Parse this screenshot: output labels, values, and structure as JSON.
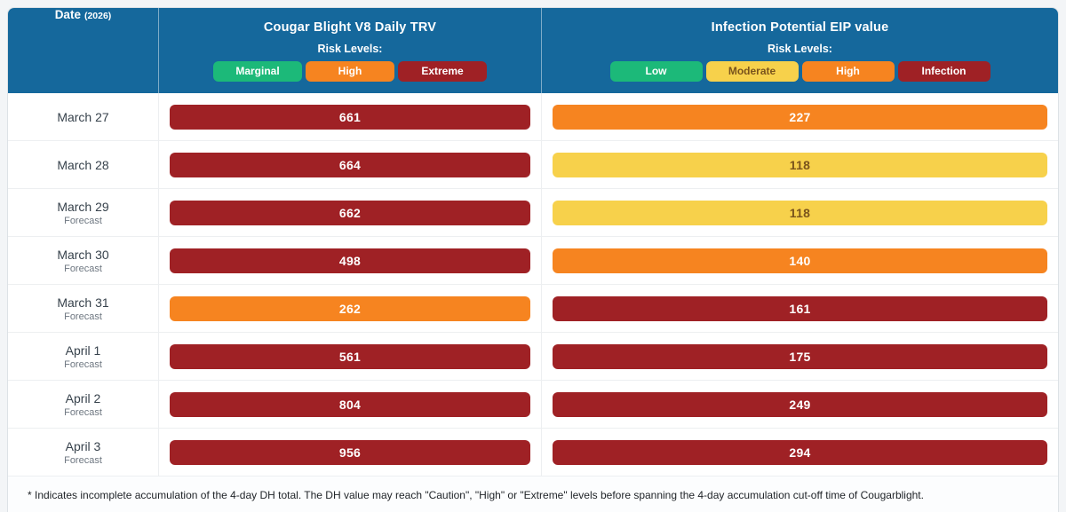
{
  "colors": {
    "header_bg": "#15689c",
    "extreme_red": "#9f2125",
    "high_orange": "#f68420",
    "moderate_yellow": "#f7d14b",
    "low_green": "#1cb979",
    "yellow_text": "#7a541c",
    "white_text": "#ffffff"
  },
  "table": {
    "date_header": {
      "label": "Date",
      "year": "(2026)"
    },
    "columns": [
      {
        "title": "Cougar Blight V8 Daily TRV",
        "risk_levels_label": "Risk Levels:",
        "badges": [
          {
            "label": "Marginal",
            "bg": "#1cb979",
            "fg": "#ffffff"
          },
          {
            "label": "High",
            "bg": "#f68420",
            "fg": "#ffffff"
          },
          {
            "label": "Extreme",
            "bg": "#9f2125",
            "fg": "#ffffff"
          }
        ]
      },
      {
        "title": "Infection Potential EIP value",
        "risk_levels_label": "Risk Levels:",
        "badges": [
          {
            "label": "Low",
            "bg": "#1cb979",
            "fg": "#ffffff"
          },
          {
            "label": "Moderate",
            "bg": "#f7d14b",
            "fg": "#7a541c"
          },
          {
            "label": "High",
            "bg": "#f68420",
            "fg": "#ffffff"
          },
          {
            "label": "Infection",
            "bg": "#9f2125",
            "fg": "#ffffff"
          }
        ]
      }
    ],
    "rows": [
      {
        "date": "March 27",
        "forecast": "",
        "trv": {
          "value": "661",
          "bg": "#9f2125",
          "fg": "#ffffff"
        },
        "eip": {
          "value": "227",
          "bg": "#f68420",
          "fg": "#ffffff"
        }
      },
      {
        "date": "March 28",
        "forecast": "",
        "trv": {
          "value": "664",
          "bg": "#9f2125",
          "fg": "#ffffff"
        },
        "eip": {
          "value": "118",
          "bg": "#f7d14b",
          "fg": "#7a541c"
        }
      },
      {
        "date": "March 29",
        "forecast": "Forecast",
        "trv": {
          "value": "662",
          "bg": "#9f2125",
          "fg": "#ffffff"
        },
        "eip": {
          "value": "118",
          "bg": "#f7d14b",
          "fg": "#7a541c"
        }
      },
      {
        "date": "March 30",
        "forecast": "Forecast",
        "trv": {
          "value": "498",
          "bg": "#9f2125",
          "fg": "#ffffff"
        },
        "eip": {
          "value": "140",
          "bg": "#f68420",
          "fg": "#ffffff"
        }
      },
      {
        "date": "March 31",
        "forecast": "Forecast",
        "trv": {
          "value": "262",
          "bg": "#f68420",
          "fg": "#ffffff"
        },
        "eip": {
          "value": "161",
          "bg": "#9f2125",
          "fg": "#ffffff"
        }
      },
      {
        "date": "April 1",
        "forecast": "Forecast",
        "trv": {
          "value": "561",
          "bg": "#9f2125",
          "fg": "#ffffff"
        },
        "eip": {
          "value": "175",
          "bg": "#9f2125",
          "fg": "#ffffff"
        }
      },
      {
        "date": "April 2",
        "forecast": "Forecast",
        "trv": {
          "value": "804",
          "bg": "#9f2125",
          "fg": "#ffffff"
        },
        "eip": {
          "value": "249",
          "bg": "#9f2125",
          "fg": "#ffffff"
        }
      },
      {
        "date": "April 3",
        "forecast": "Forecast",
        "trv": {
          "value": "956",
          "bg": "#9f2125",
          "fg": "#ffffff"
        },
        "eip": {
          "value": "294",
          "bg": "#9f2125",
          "fg": "#ffffff"
        }
      }
    ],
    "footnote": "* Indicates incomplete accumulation of the 4-day DH total. The DH value may reach \"Caution\", \"High\" or \"Extreme\" levels before spanning the 4-day accumulation cut-off time of Cougarblight."
  },
  "chart_data": {
    "type": "table",
    "title": "Cougar Blight V8 Daily TRV / Infection Potential EIP value",
    "columns": [
      "Date (2026)",
      "Cougar Blight V8 Daily TRV",
      "Infection Potential EIP value"
    ],
    "trv_risk_levels": [
      "Marginal",
      "High",
      "Extreme"
    ],
    "eip_risk_levels": [
      "Low",
      "Moderate",
      "High",
      "Infection"
    ],
    "rows": [
      {
        "date": "March 27",
        "forecast": false,
        "trv": 661,
        "trv_level": "Extreme",
        "eip": 227,
        "eip_level": "High"
      },
      {
        "date": "March 28",
        "forecast": false,
        "trv": 664,
        "trv_level": "Extreme",
        "eip": 118,
        "eip_level": "Moderate"
      },
      {
        "date": "March 29",
        "forecast": true,
        "trv": 662,
        "trv_level": "Extreme",
        "eip": 118,
        "eip_level": "Moderate"
      },
      {
        "date": "March 30",
        "forecast": true,
        "trv": 498,
        "trv_level": "Extreme",
        "eip": 140,
        "eip_level": "High"
      },
      {
        "date": "March 31",
        "forecast": true,
        "trv": 262,
        "trv_level": "High",
        "eip": 161,
        "eip_level": "Infection"
      },
      {
        "date": "April 1",
        "forecast": true,
        "trv": 561,
        "trv_level": "Extreme",
        "eip": 175,
        "eip_level": "Infection"
      },
      {
        "date": "April 2",
        "forecast": true,
        "trv": 804,
        "trv_level": "Extreme",
        "eip": 249,
        "eip_level": "Infection"
      },
      {
        "date": "April 3",
        "forecast": true,
        "trv": 956,
        "trv_level": "Extreme",
        "eip": 294,
        "eip_level": "Infection"
      }
    ]
  }
}
